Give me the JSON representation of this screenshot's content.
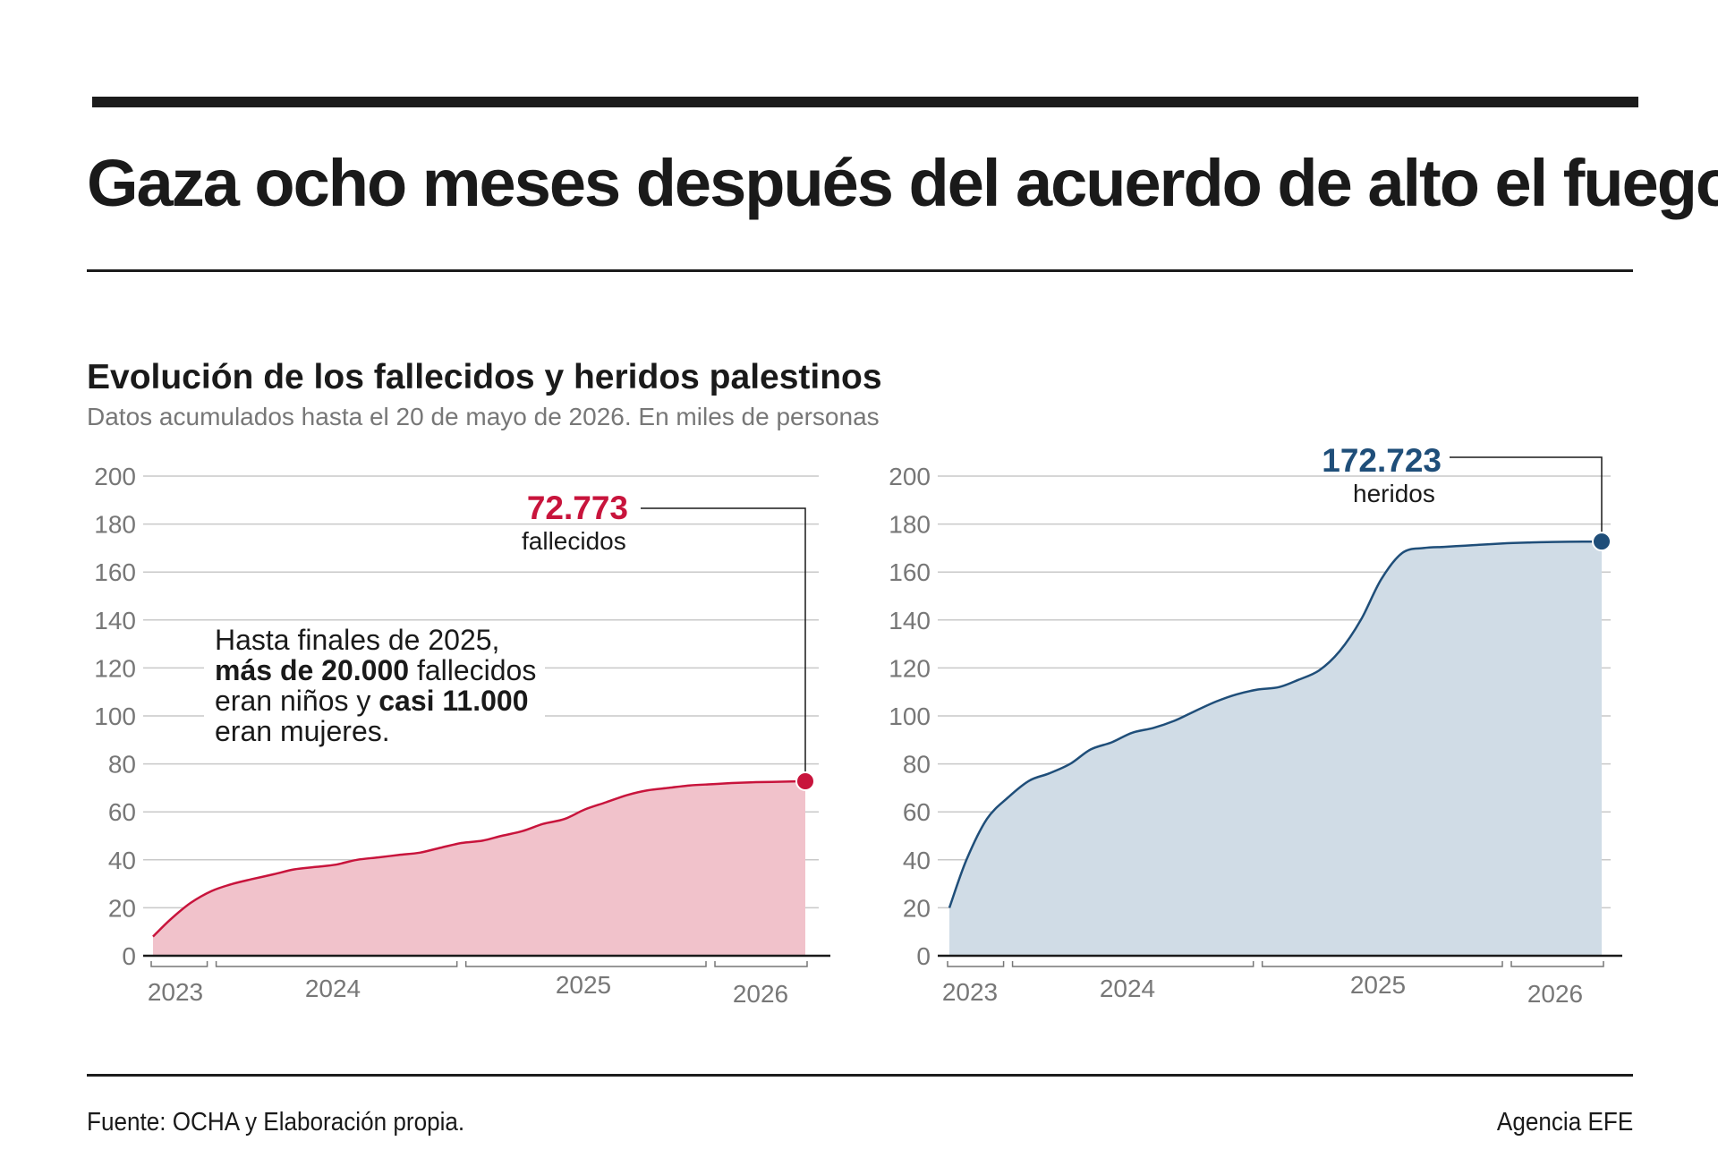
{
  "title": "Gaza ocho meses después del acuerdo de alto el fuego",
  "subtitle": "Evolución de los fallecidos y heridos palestinos",
  "note": "Datos acumulados hasta el 20 de mayo de 2026. En miles de personas",
  "annotation": {
    "line1": "Hasta finales de 2025,",
    "line2_bold": "más de 20.000",
    "line2_rest": " fallecidos",
    "line3_start": "eran niños y ",
    "line3_bold": "casi 11.000",
    "line4": "eran mujeres."
  },
  "source": "Fuente: OCHA y Elaboración propia.",
  "credit": "Agencia EFE",
  "colors": {
    "deaths_line": "#c8143c",
    "deaths_fill": "#f1c2cb",
    "injured_line": "#1f4e79",
    "injured_fill": "#d0dce6"
  },
  "chart_data": [
    {
      "type": "area",
      "ylim": [
        0,
        200
      ],
      "yticks": [
        "0",
        "20",
        "40",
        "60",
        "80",
        "100",
        "120",
        "140",
        "160",
        "180",
        "200"
      ],
      "year_labels": [
        "2023",
        "2024",
        "2025",
        "2026"
      ],
      "x_start": "2023-10-07",
      "x_end": "2026-05-20",
      "series": [
        {
          "x": [
            "2023-10-07",
            "2023-11-01",
            "2023-12-01",
            "2024-01-01",
            "2024-02-01",
            "2024-03-01",
            "2024-04-01",
            "2024-05-01",
            "2024-06-01",
            "2024-07-01",
            "2024-08-01",
            "2024-09-01",
            "2024-10-01",
            "2024-11-01",
            "2024-12-01",
            "2025-01-01",
            "2025-02-01",
            "2025-03-01",
            "2025-04-01",
            "2025-05-01",
            "2025-06-01",
            "2025-07-01",
            "2025-08-01",
            "2025-09-01",
            "2025-10-01",
            "2025-11-01",
            "2025-12-01",
            "2026-01-01",
            "2026-02-01",
            "2026-03-01",
            "2026-04-01",
            "2026-05-20"
          ],
          "values": [
            8,
            15,
            22,
            27,
            30,
            32,
            34,
            36,
            37,
            38,
            40,
            41,
            42,
            43,
            45,
            47,
            48,
            50,
            52,
            55,
            57,
            61,
            64,
            67,
            69,
            70,
            71,
            71.5,
            72,
            72.3,
            72.5,
            72.773
          ],
          "end_value_label": "72.773",
          "end_label_text": "fallecidos"
        }
      ]
    },
    {
      "type": "area",
      "ylim": [
        0,
        200
      ],
      "yticks": [
        "0",
        "20",
        "40",
        "60",
        "80",
        "100",
        "120",
        "140",
        "160",
        "180",
        "200"
      ],
      "year_labels": [
        "2023",
        "2024",
        "2025",
        "2026"
      ],
      "x_start": "2023-10-07",
      "x_end": "2026-05-20",
      "series": [
        {
          "x": [
            "2023-10-07",
            "2023-11-01",
            "2023-12-01",
            "2024-01-01",
            "2024-02-01",
            "2024-03-01",
            "2024-04-01",
            "2024-05-01",
            "2024-06-01",
            "2024-07-01",
            "2024-08-01",
            "2024-09-01",
            "2024-10-01",
            "2024-11-01",
            "2024-12-01",
            "2025-01-01",
            "2025-02-01",
            "2025-03-01",
            "2025-04-01",
            "2025-05-01",
            "2025-06-01",
            "2025-07-01",
            "2025-08-01",
            "2025-09-01",
            "2025-10-01",
            "2025-11-01",
            "2025-12-01",
            "2026-01-01",
            "2026-02-01",
            "2026-03-01",
            "2026-04-01",
            "2026-05-20"
          ],
          "values": [
            20,
            40,
            57,
            66,
            73,
            76,
            80,
            86,
            89,
            93,
            95,
            98,
            102,
            106,
            109,
            111,
            112,
            115,
            119,
            127,
            140,
            157,
            168,
            170,
            170.5,
            171,
            171.5,
            172,
            172.3,
            172.5,
            172.6,
            172.723
          ],
          "end_value_label": "172.723",
          "end_label_text": "heridos"
        }
      ]
    }
  ]
}
